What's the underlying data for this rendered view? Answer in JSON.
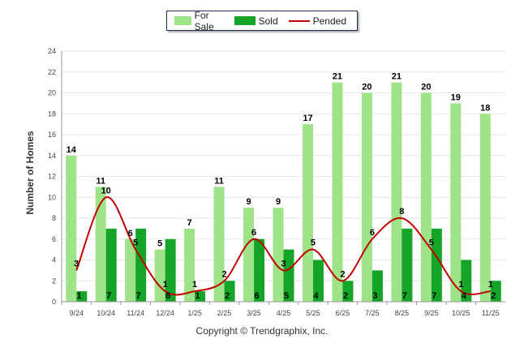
{
  "chart_data": {
    "type": "bar",
    "ylabel": "Number of Homes",
    "ylim": [
      0,
      24
    ],
    "yticks": [
      "0",
      "2",
      "4",
      "6",
      "8",
      "10",
      "12",
      "14",
      "16",
      "18",
      "20",
      "22",
      "24"
    ],
    "categories": [
      "9/24",
      "10/24",
      "11/24",
      "12/24",
      "1/25",
      "2/25",
      "3/25",
      "4/25",
      "5/25",
      "6/25",
      "7/25",
      "8/25",
      "9/25",
      "10/25",
      "11/25"
    ],
    "series": [
      {
        "name": "For Sale",
        "kind": "bar",
        "color": "#9ee387",
        "values": [
          14,
          11,
          6,
          5,
          7,
          11,
          9,
          9,
          17,
          21,
          20,
          21,
          20,
          19,
          18
        ]
      },
      {
        "name": "Sold",
        "kind": "bar",
        "color": "#14a528",
        "values": [
          1,
          7,
          7,
          6,
          1,
          2,
          6,
          5,
          4,
          2,
          3,
          7,
          7,
          4,
          2
        ]
      },
      {
        "name": "Pended",
        "kind": "line",
        "color": "#c00000",
        "values": [
          3,
          10,
          5,
          1,
          1,
          2,
          6,
          3,
          5,
          2,
          6,
          8,
          5,
          1,
          1
        ]
      }
    ],
    "grid": true,
    "legend": "top-center"
  },
  "footer": {
    "copyright": "Copyright © Trendgraphix, Inc."
  }
}
